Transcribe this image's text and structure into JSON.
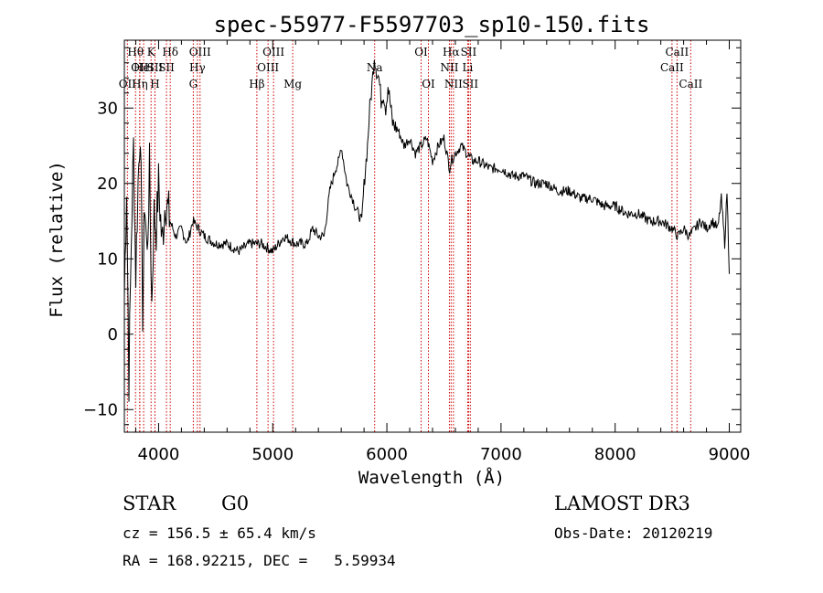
{
  "chart_data": {
    "type": "line",
    "title": "spec-55977-F5597703_sp10-150.fits",
    "xlabel": "Wavelength (Å)",
    "ylabel": "Flux (relative)",
    "xlim": [
      3700,
      9100
    ],
    "ylim": [
      -13,
      39
    ],
    "xticks": [
      4000,
      5000,
      6000,
      7000,
      8000,
      9000
    ],
    "yticks": [
      -10,
      0,
      10,
      20,
      30
    ],
    "series": [
      {
        "name": "flux",
        "x": [
          3700,
          3720,
          3740,
          3760,
          3780,
          3800,
          3820,
          3840,
          3860,
          3880,
          3900,
          3920,
          3940,
          3960,
          3980,
          4000,
          4030,
          4060,
          4100,
          4150,
          4200,
          4250,
          4300,
          4350,
          4400,
          4500,
          4600,
          4700,
          4800,
          4900,
          5000,
          5100,
          5200,
          5300,
          5350,
          5400,
          5450,
          5500,
          5550,
          5580,
          5600,
          5650,
          5700,
          5720,
          5750,
          5780,
          5800,
          5830,
          5850,
          5870,
          5890,
          5910,
          5930,
          5950,
          5970,
          5990,
          6010,
          6050,
          6100,
          6150,
          6200,
          6250,
          6300,
          6350,
          6400,
          6450,
          6500,
          6550,
          6563,
          6600,
          6650,
          6700,
          6750,
          6800,
          6900,
          7000,
          7100,
          7200,
          7300,
          7400,
          7500,
          7600,
          7700,
          7800,
          7900,
          8000,
          8100,
          8200,
          8300,
          8400,
          8500,
          8550,
          8600,
          8650,
          8700,
          8750,
          8800,
          8850,
          8900,
          8930,
          8960,
          8980,
          9000
        ],
        "y": [
          5,
          20,
          -6,
          12,
          25,
          8,
          20,
          28,
          3,
          18,
          10,
          22,
          4,
          16,
          14,
          20,
          12,
          18,
          15,
          13,
          14,
          12,
          15,
          14,
          13,
          12,
          12,
          11,
          12,
          12,
          11,
          13,
          12,
          12,
          14,
          13,
          13,
          19,
          22,
          23,
          25,
          20,
          18,
          17,
          16,
          15,
          20,
          25,
          30,
          33,
          37,
          35,
          34,
          31,
          32,
          30,
          33,
          28,
          27,
          25,
          26,
          24,
          25,
          26,
          23,
          25,
          26,
          22,
          23,
          24,
          25,
          24,
          23,
          23,
          22,
          22,
          21,
          21,
          20,
          20,
          19,
          19,
          18,
          18,
          17,
          17,
          16,
          16,
          15,
          15,
          14,
          13,
          14,
          13,
          14,
          15,
          14,
          15,
          14,
          18,
          12,
          19,
          8
        ]
      }
    ],
    "line_markers": [
      {
        "wavelength": 3798,
        "label": "Hθ",
        "row": 1
      },
      {
        "wavelength": 3835,
        "label": "OII",
        "row": 2
      },
      {
        "wavelength": 3869,
        "label": "HeI",
        "row": 2
      },
      {
        "wavelength": 3727,
        "label": "OII",
        "row": 3
      },
      {
        "wavelength": 3835,
        "label": "Hη",
        "row": 3
      },
      {
        "wavelength": 3934,
        "label": "K",
        "row": 1
      },
      {
        "wavelength": 3968,
        "label": "SII",
        "row": 2
      },
      {
        "wavelength": 3968,
        "label": "H",
        "row": 3
      },
      {
        "wavelength": 4102,
        "label": "Hδ",
        "row": 1
      },
      {
        "wavelength": 4069,
        "label": "SII",
        "row": 2
      },
      {
        "wavelength": 4363,
        "label": "OIII",
        "row": 1
      },
      {
        "wavelength": 4340,
        "label": "Hγ",
        "row": 2
      },
      {
        "wavelength": 4304,
        "label": "G",
        "row": 3
      },
      {
        "wavelength": 4861,
        "label": "Hβ",
        "row": 3
      },
      {
        "wavelength": 5007,
        "label": "OIII",
        "row": 1
      },
      {
        "wavelength": 4959,
        "label": "OIII",
        "row": 2
      },
      {
        "wavelength": 5175,
        "label": "Mg",
        "row": 3
      },
      {
        "wavelength": 5893,
        "label": "Na",
        "row": 2
      },
      {
        "wavelength": 6300,
        "label": "OI",
        "row": 1
      },
      {
        "wavelength": 6364,
        "label": "OI",
        "row": 3
      },
      {
        "wavelength": 6563,
        "label": "Hα",
        "row": 1
      },
      {
        "wavelength": 6548,
        "label": "NII",
        "row": 2
      },
      {
        "wavelength": 6583,
        "label": "NII",
        "row": 3
      },
      {
        "wavelength": 6716,
        "label": "SII",
        "row": 1
      },
      {
        "wavelength": 6708,
        "label": "Li",
        "row": 2
      },
      {
        "wavelength": 6731,
        "label": "SII",
        "row": 3
      },
      {
        "wavelength": 8498,
        "label": "CaII",
        "row": 2
      },
      {
        "wavelength": 8542,
        "label": "CaII",
        "row": 1
      },
      {
        "wavelength": 8662,
        "label": "CaII",
        "row": 3
      }
    ]
  },
  "info": {
    "class": "STAR",
    "subclass": "G0",
    "survey": "LAMOST DR3",
    "cz": "cz = 156.5 ± 65.4 km/s",
    "obs_date": "Obs-Date: 20120219",
    "coords": "RA = 168.92215, DEC =   5.59934"
  },
  "colors": {
    "line_marker": "#cc0000",
    "spectrum": "#000000",
    "axes": "#000000"
  }
}
